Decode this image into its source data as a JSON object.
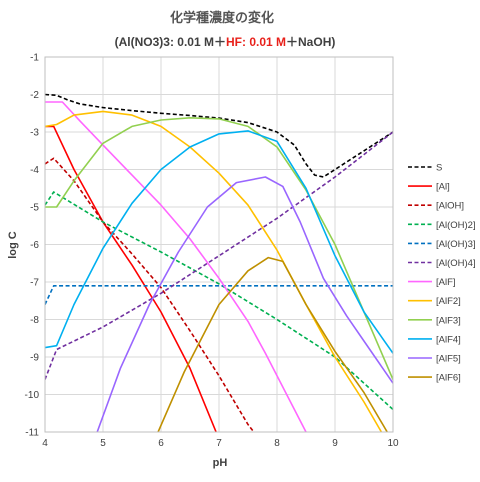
{
  "chart_data": {
    "type": "line",
    "title": "化学種濃度の変化",
    "subtitle_parts": [
      {
        "text": "(Al(NO3)3: 0.01 M",
        "color": "#404040"
      },
      {
        "text": "＋",
        "color": "#404040"
      },
      {
        "text": "HF: 0.01 M",
        "color": "#e8201a"
      },
      {
        "text": "＋NaOH)",
        "color": "#404040"
      }
    ],
    "xlabel": "pH",
    "ylabel": "log C",
    "xlim": [
      4,
      10
    ],
    "ylim": [
      -11,
      -1
    ],
    "xticks": [
      4,
      5,
      6,
      7,
      8,
      9,
      10
    ],
    "yticks": [
      -1,
      -2,
      -3,
      -4,
      -5,
      -6,
      -7,
      -8,
      -9,
      -10,
      -11
    ],
    "grid": true,
    "legend_position": "right",
    "series": [
      {
        "name": "S",
        "color": "#000000",
        "dash": true,
        "points": [
          [
            4.0,
            -2.0
          ],
          [
            4.2,
            -2.02
          ],
          [
            4.4,
            -2.15
          ],
          [
            4.6,
            -2.25
          ],
          [
            5.0,
            -2.35
          ],
          [
            5.5,
            -2.43
          ],
          [
            6.0,
            -2.5
          ],
          [
            6.5,
            -2.56
          ],
          [
            7.0,
            -2.63
          ],
          [
            7.5,
            -2.75
          ],
          [
            8.0,
            -3.0
          ],
          [
            8.3,
            -3.35
          ],
          [
            8.5,
            -3.85
          ],
          [
            8.65,
            -4.15
          ],
          [
            8.8,
            -4.2
          ],
          [
            9.0,
            -4.0
          ],
          [
            9.5,
            -3.5
          ],
          [
            10.0,
            -3.0
          ]
        ]
      },
      {
        "name": "[Al]",
        "color": "#ff0000",
        "dash": false,
        "points": [
          [
            4.0,
            -2.85
          ],
          [
            4.15,
            -2.85
          ],
          [
            4.5,
            -4.0
          ],
          [
            5.0,
            -5.4
          ],
          [
            5.5,
            -6.55
          ],
          [
            6.0,
            -7.8
          ],
          [
            6.5,
            -9.3
          ],
          [
            6.95,
            -11.0
          ]
        ]
      },
      {
        "name": "[AlOH]",
        "color": "#c00000",
        "dash": true,
        "points": [
          [
            4.0,
            -3.85
          ],
          [
            4.15,
            -3.7
          ],
          [
            4.5,
            -4.3
          ],
          [
            5.0,
            -5.4
          ],
          [
            5.5,
            -6.25
          ],
          [
            6.0,
            -7.15
          ],
          [
            6.5,
            -8.3
          ],
          [
            7.0,
            -9.5
          ],
          [
            7.5,
            -10.8
          ],
          [
            7.6,
            -11.0
          ]
        ]
      },
      {
        "name": "[Al(OH)2]",
        "color": "#00b050",
        "dash": true,
        "points": [
          [
            4.0,
            -4.95
          ],
          [
            4.15,
            -4.6
          ],
          [
            5.0,
            -5.4
          ],
          [
            6.0,
            -6.2
          ],
          [
            7.0,
            -7.05
          ],
          [
            8.0,
            -8.0
          ],
          [
            9.0,
            -9.0
          ],
          [
            10.0,
            -10.4
          ]
        ]
      },
      {
        "name": "[Al(OH)3]",
        "color": "#0070c0",
        "dash": true,
        "points": [
          [
            4.0,
            -7.6
          ],
          [
            4.15,
            -7.1
          ],
          [
            5.0,
            -7.1
          ],
          [
            6.0,
            -7.1
          ],
          [
            7.0,
            -7.1
          ],
          [
            8.0,
            -7.1
          ],
          [
            9.0,
            -7.1
          ],
          [
            10.0,
            -7.1
          ]
        ]
      },
      {
        "name": "[Al(OH)4]",
        "color": "#7030a0",
        "dash": true,
        "points": [
          [
            4.0,
            -9.6
          ],
          [
            4.2,
            -8.8
          ],
          [
            5.0,
            -8.2
          ],
          [
            6.0,
            -7.3
          ],
          [
            7.0,
            -6.3
          ],
          [
            8.0,
            -5.3
          ],
          [
            9.0,
            -4.2
          ],
          [
            10.0,
            -3.0
          ]
        ]
      },
      {
        "name": "[AlF]",
        "color": "#ff66ff",
        "dash": false,
        "points": [
          [
            4.0,
            -2.2
          ],
          [
            4.3,
            -2.2
          ],
          [
            4.6,
            -2.7
          ],
          [
            5.0,
            -3.35
          ],
          [
            5.5,
            -4.15
          ],
          [
            6.0,
            -4.95
          ],
          [
            6.5,
            -5.85
          ],
          [
            7.0,
            -6.9
          ],
          [
            7.5,
            -8.05
          ],
          [
            7.8,
            -8.9
          ],
          [
            8.2,
            -10.1
          ],
          [
            8.5,
            -11.0
          ]
        ]
      },
      {
        "name": "[AlF2]",
        "color": "#ffc000",
        "dash": false,
        "points": [
          [
            4.0,
            -2.85
          ],
          [
            4.2,
            -2.8
          ],
          [
            4.5,
            -2.55
          ],
          [
            5.0,
            -2.45
          ],
          [
            5.5,
            -2.55
          ],
          [
            6.0,
            -2.85
          ],
          [
            6.5,
            -3.4
          ],
          [
            7.0,
            -4.1
          ],
          [
            7.5,
            -4.95
          ],
          [
            8.0,
            -6.15
          ],
          [
            8.5,
            -7.6
          ],
          [
            9.0,
            -9.0
          ],
          [
            9.5,
            -10.2
          ],
          [
            9.8,
            -11.0
          ]
        ]
      },
      {
        "name": "[AlF3]",
        "color": "#92d050",
        "dash": false,
        "points": [
          [
            4.0,
            -5.0
          ],
          [
            4.2,
            -5.0
          ],
          [
            4.5,
            -4.3
          ],
          [
            5.0,
            -3.3
          ],
          [
            5.5,
            -2.85
          ],
          [
            6.0,
            -2.68
          ],
          [
            6.5,
            -2.62
          ],
          [
            7.0,
            -2.65
          ],
          [
            7.5,
            -2.85
          ],
          [
            8.0,
            -3.4
          ],
          [
            8.5,
            -4.55
          ],
          [
            9.0,
            -6.0
          ],
          [
            9.5,
            -7.8
          ],
          [
            10.0,
            -9.6
          ]
        ]
      },
      {
        "name": "[AlF4]",
        "color": "#00b0f0",
        "dash": false,
        "points": [
          [
            4.0,
            -8.75
          ],
          [
            4.2,
            -8.7
          ],
          [
            4.5,
            -7.6
          ],
          [
            5.0,
            -6.1
          ],
          [
            5.5,
            -4.9
          ],
          [
            6.0,
            -4.0
          ],
          [
            6.5,
            -3.4
          ],
          [
            7.0,
            -3.05
          ],
          [
            7.5,
            -2.97
          ],
          [
            8.0,
            -3.25
          ],
          [
            8.5,
            -4.5
          ],
          [
            9.0,
            -6.3
          ],
          [
            9.5,
            -7.8
          ],
          [
            10.0,
            -8.9
          ]
        ]
      },
      {
        "name": "[AlF5]",
        "color": "#9966ff",
        "dash": false,
        "points": [
          [
            4.9,
            -11.0
          ],
          [
            5.3,
            -9.3
          ],
          [
            5.8,
            -7.6
          ],
          [
            6.3,
            -6.2
          ],
          [
            6.8,
            -5.0
          ],
          [
            7.3,
            -4.35
          ],
          [
            7.8,
            -4.2
          ],
          [
            8.1,
            -4.45
          ],
          [
            8.4,
            -5.4
          ],
          [
            8.8,
            -6.9
          ],
          [
            9.2,
            -7.9
          ],
          [
            9.6,
            -8.8
          ],
          [
            10.0,
            -9.7
          ]
        ]
      },
      {
        "name": "[AlF6]",
        "color": "#bf9000",
        "dash": false,
        "points": [
          [
            5.95,
            -11.0
          ],
          [
            6.4,
            -9.4
          ],
          [
            7.0,
            -7.6
          ],
          [
            7.5,
            -6.7
          ],
          [
            7.85,
            -6.35
          ],
          [
            8.1,
            -6.45
          ],
          [
            8.5,
            -7.6
          ],
          [
            9.0,
            -8.85
          ],
          [
            9.5,
            -9.95
          ],
          [
            9.9,
            -11.0
          ]
        ]
      }
    ]
  }
}
